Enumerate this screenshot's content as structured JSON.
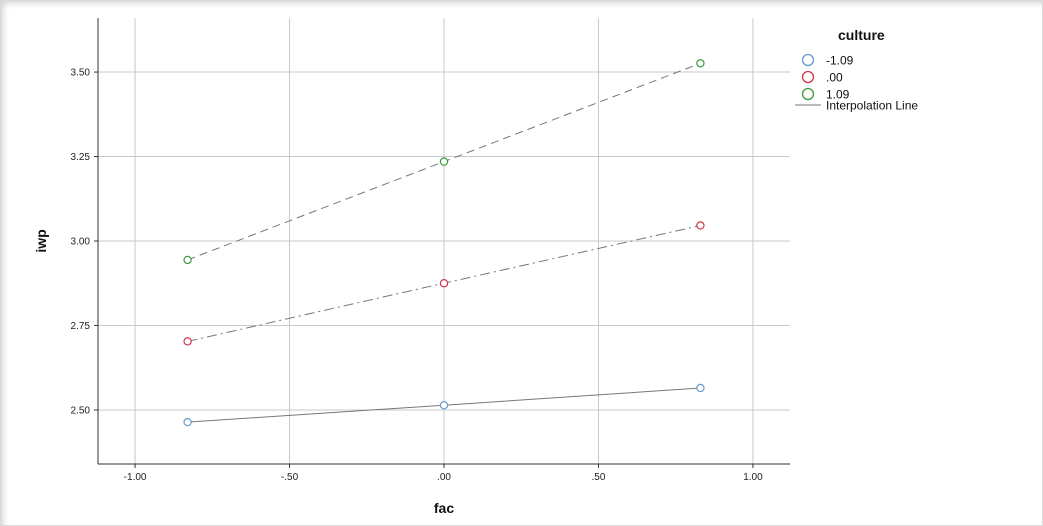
{
  "chart_data": {
    "type": "line",
    "title": "",
    "xlabel": "fac",
    "ylabel": "iwp",
    "xlim": [
      -1.12,
      1.12
    ],
    "ylim": [
      2.34,
      3.66
    ],
    "x_ticks": [
      -1.0,
      -0.5,
      0.0,
      0.5,
      1.0
    ],
    "x_tick_labels": [
      "-1.00",
      "-.50",
      ".00",
      ".50",
      "1.00"
    ],
    "y_ticks": [
      2.5,
      2.75,
      3.0,
      3.25,
      3.5
    ],
    "y_tick_labels": [
      "2.50",
      "2.75",
      "3.00",
      "3.25",
      "3.50"
    ],
    "grid": true,
    "legend_position": "right",
    "legend": {
      "title": "culture",
      "interpolation_label": "Interpolation Line"
    },
    "x": [
      -0.83,
      0.0,
      0.83
    ],
    "series": [
      {
        "name": "-1.09",
        "color": "#6699cc",
        "line_style": "solid",
        "values": [
          2.464,
          2.514,
          2.565
        ]
      },
      {
        "name": ".00",
        "color": "#d0344a",
        "line_style": "dashdot",
        "values": [
          2.703,
          2.875,
          3.046
        ]
      },
      {
        "name": "1.09",
        "color": "#3a9a3a",
        "line_style": "dashed",
        "values": [
          2.944,
          3.235,
          3.526
        ]
      }
    ]
  }
}
